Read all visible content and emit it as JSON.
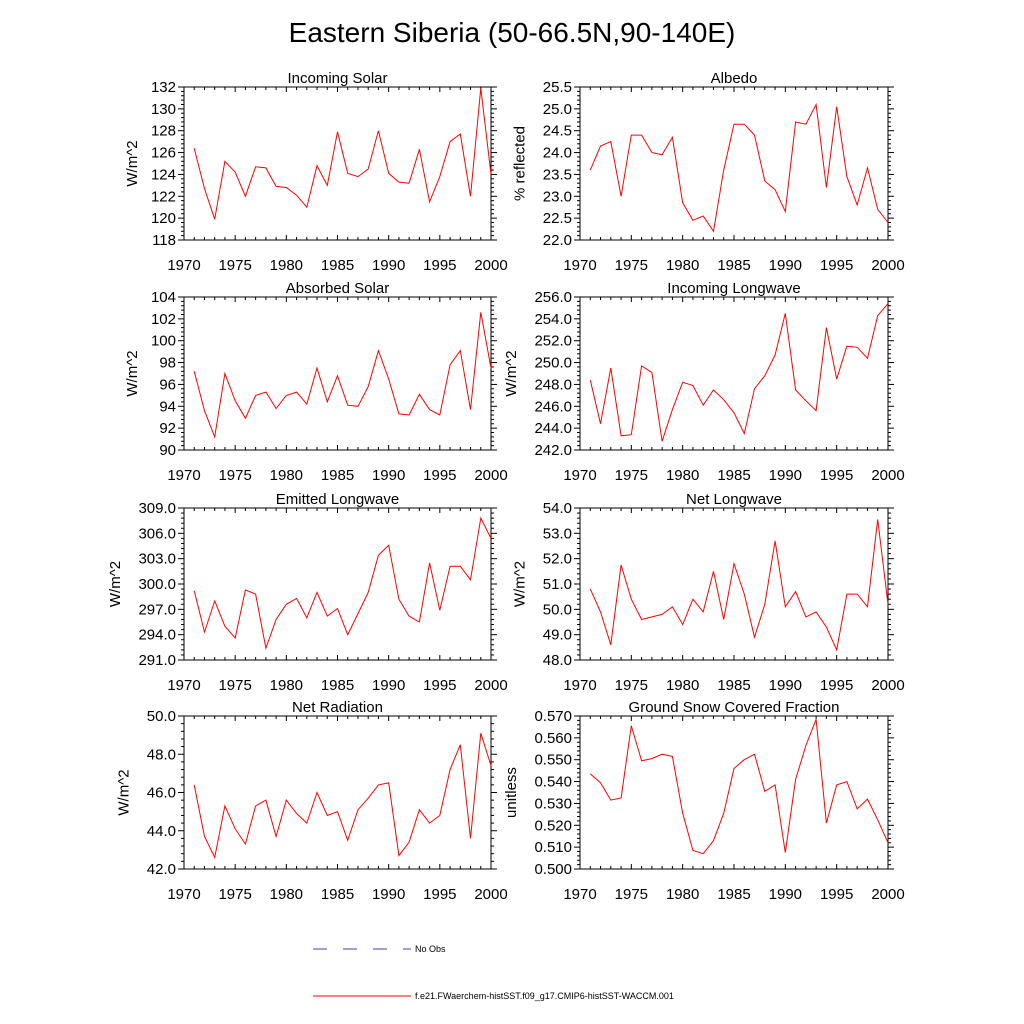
{
  "figure": {
    "title": "Eastern Siberia (50-66.5N,90-140E)"
  },
  "legend": {
    "entries": [
      {
        "label": "No Obs",
        "color": "#3b46a8",
        "style": "dashed"
      },
      {
        "label": "f.e21.FWaerchem-histSST.f09_g17.CMIP6-histSST-WACCM.001",
        "color": "#ff0000",
        "style": "solid"
      }
    ]
  },
  "chart_data": [
    {
      "type": "line",
      "title": "Incoming Solar",
      "ylabel": "W/m^2",
      "xlim": [
        1970,
        2000
      ],
      "ylim": [
        118,
        132
      ],
      "xticks": [
        1970,
        1975,
        1980,
        1985,
        1990,
        1995,
        2000
      ],
      "yticks": [
        "118",
        "120",
        "122",
        "124",
        "126",
        "128",
        "130",
        "132"
      ],
      "x": [
        1971,
        1972,
        1973,
        1974,
        1975,
        1976,
        1977,
        1978,
        1979,
        1980,
        1981,
        1982,
        1983,
        1984,
        1985,
        1986,
        1987,
        1988,
        1989,
        1990,
        1991,
        1992,
        1993,
        1994,
        1995,
        1996,
        1997,
        1998,
        1999,
        2000
      ],
      "series": [
        {
          "color": "#ff0000",
          "values": [
            126.4,
            122.7,
            119.9,
            125.2,
            124.2,
            122.0,
            124.7,
            124.6,
            122.9,
            122.8,
            122.1,
            121.0,
            124.8,
            123.0,
            127.9,
            124.1,
            123.8,
            124.5,
            128.0,
            124.1,
            123.3,
            123.2,
            126.3,
            121.5,
            123.8,
            127.0,
            127.7,
            122.0,
            131.9,
            124.0
          ]
        }
      ]
    },
    {
      "type": "line",
      "title": "Albedo",
      "ylabel": "% reflected",
      "xlim": [
        1970,
        2000
      ],
      "ylim": [
        22.0,
        25.5
      ],
      "xticks": [
        1970,
        1975,
        1980,
        1985,
        1990,
        1995,
        2000
      ],
      "yticks": [
        "22.0",
        "22.5",
        "23.0",
        "23.5",
        "24.0",
        "24.5",
        "25.0",
        "25.5"
      ],
      "x": [
        1971,
        1972,
        1973,
        1974,
        1975,
        1976,
        1977,
        1978,
        1979,
        1980,
        1981,
        1982,
        1983,
        1984,
        1985,
        1986,
        1987,
        1988,
        1989,
        1990,
        1991,
        1992,
        1993,
        1994,
        1995,
        1996,
        1997,
        1998,
        1999,
        2000
      ],
      "series": [
        {
          "color": "#ff0000",
          "values": [
            23.6,
            24.15,
            24.25,
            23.0,
            24.4,
            24.4,
            24.0,
            23.95,
            24.35,
            22.85,
            22.45,
            22.55,
            22.2,
            23.6,
            24.65,
            24.65,
            24.4,
            23.35,
            23.15,
            22.65,
            24.7,
            24.65,
            25.1,
            23.2,
            25.05,
            23.45,
            22.8,
            23.65,
            22.7,
            22.4
          ]
        }
      ]
    },
    {
      "type": "line",
      "title": "Absorbed Solar",
      "ylabel": "W/m^2",
      "xlim": [
        1970,
        2000
      ],
      "ylim": [
        90,
        104
      ],
      "xticks": [
        1970,
        1975,
        1980,
        1985,
        1990,
        1995,
        2000
      ],
      "yticks": [
        "90",
        "92",
        "94",
        "96",
        "98",
        "100",
        "102",
        "104"
      ],
      "x": [
        1971,
        1972,
        1973,
        1974,
        1975,
        1976,
        1977,
        1978,
        1979,
        1980,
        1981,
        1982,
        1983,
        1984,
        1985,
        1986,
        1987,
        1988,
        1989,
        1990,
        1991,
        1992,
        1993,
        1994,
        1995,
        1996,
        1997,
        1998,
        1999,
        2000
      ],
      "series": [
        {
          "color": "#ff0000",
          "values": [
            97.2,
            93.6,
            91.2,
            97.0,
            94.5,
            92.9,
            95.0,
            95.3,
            93.8,
            95.0,
            95.3,
            94.2,
            97.5,
            94.4,
            96.8,
            94.1,
            94.0,
            95.8,
            99.1,
            96.5,
            93.3,
            93.2,
            95.1,
            93.7,
            93.2,
            97.8,
            99.1,
            93.7,
            102.6,
            97.5
          ]
        }
      ]
    },
    {
      "type": "line",
      "title": "Incoming Longwave",
      "ylabel": "W/m^2",
      "xlim": [
        1970,
        2000
      ],
      "ylim": [
        242.0,
        256.0
      ],
      "xticks": [
        1970,
        1975,
        1980,
        1985,
        1990,
        1995,
        2000
      ],
      "yticks": [
        "242.0",
        "244.0",
        "246.0",
        "248.0",
        "250.0",
        "252.0",
        "254.0",
        "256.0"
      ],
      "x": [
        1971,
        1972,
        1973,
        1974,
        1975,
        1976,
        1977,
        1978,
        1979,
        1980,
        1981,
        1982,
        1983,
        1984,
        1985,
        1986,
        1987,
        1988,
        1989,
        1990,
        1991,
        1992,
        1993,
        1994,
        1995,
        1996,
        1997,
        1998,
        1999,
        2000
      ],
      "series": [
        {
          "color": "#ff0000",
          "values": [
            248.4,
            244.4,
            249.5,
            243.3,
            243.4,
            249.7,
            249.1,
            242.8,
            245.7,
            248.2,
            247.9,
            246.1,
            247.5,
            246.6,
            245.4,
            243.5,
            247.6,
            248.8,
            250.7,
            254.5,
            247.5,
            246.5,
            245.6,
            253.2,
            248.5,
            251.5,
            251.4,
            250.4,
            254.3,
            255.4
          ]
        }
      ]
    },
    {
      "type": "line",
      "title": "Emitted Longwave",
      "ylabel": "W/m^2",
      "xlim": [
        1970,
        2000
      ],
      "ylim": [
        291.0,
        309.0
      ],
      "xticks": [
        1970,
        1975,
        1980,
        1985,
        1990,
        1995,
        2000
      ],
      "yticks": [
        "291.0",
        "294.0",
        "297.0",
        "300.0",
        "303.0",
        "306.0",
        "309.0"
      ],
      "x": [
        1971,
        1972,
        1973,
        1974,
        1975,
        1976,
        1977,
        1978,
        1979,
        1980,
        1981,
        1982,
        1983,
        1984,
        1985,
        1986,
        1987,
        1988,
        1989,
        1990,
        1991,
        1992,
        1993,
        1994,
        1995,
        1996,
        1997,
        1998,
        1999,
        2000
      ],
      "series": [
        {
          "color": "#ff0000",
          "values": [
            299.2,
            294.3,
            298.0,
            295.0,
            293.6,
            299.3,
            298.8,
            292.4,
            295.8,
            297.6,
            298.3,
            296.0,
            299.0,
            296.2,
            297.1,
            294.0,
            296.5,
            299.0,
            303.4,
            304.6,
            298.2,
            296.2,
            295.5,
            302.5,
            296.9,
            302.1,
            302.1,
            300.5,
            307.8,
            305.4
          ]
        }
      ]
    },
    {
      "type": "line",
      "title": "Net Longwave",
      "ylabel": "W/m^2",
      "xlim": [
        1970,
        2000
      ],
      "ylim": [
        48.0,
        54.0
      ],
      "xticks": [
        1970,
        1975,
        1980,
        1985,
        1990,
        1995,
        2000
      ],
      "yticks": [
        "48.0",
        "49.0",
        "50.0",
        "51.0",
        "52.0",
        "53.0",
        "54.0"
      ],
      "x": [
        1971,
        1972,
        1973,
        1974,
        1975,
        1976,
        1977,
        1978,
        1979,
        1980,
        1981,
        1982,
        1983,
        1984,
        1985,
        1986,
        1987,
        1988,
        1989,
        1990,
        1991,
        1992,
        1993,
        1994,
        1995,
        1996,
        1997,
        1998,
        1999,
        2000
      ],
      "series": [
        {
          "color": "#ff0000",
          "values": [
            50.8,
            49.9,
            48.6,
            51.75,
            50.4,
            49.6,
            49.7,
            49.8,
            50.1,
            49.4,
            50.4,
            49.9,
            51.5,
            49.6,
            51.8,
            50.6,
            48.9,
            50.2,
            52.7,
            50.1,
            50.7,
            49.7,
            49.9,
            49.3,
            48.4,
            50.6,
            50.6,
            50.1,
            53.55,
            50.2
          ]
        }
      ]
    },
    {
      "type": "line",
      "title": "Net Radiation",
      "ylabel": "W/m^2",
      "xlim": [
        1970,
        2000
      ],
      "ylim": [
        42.0,
        50.0
      ],
      "xticks": [
        1970,
        1975,
        1980,
        1985,
        1990,
        1995,
        2000
      ],
      "yticks": [
        "42.0",
        "44.0",
        "46.0",
        "48.0",
        "50.0"
      ],
      "x": [
        1971,
        1972,
        1973,
        1974,
        1975,
        1976,
        1977,
        1978,
        1979,
        1980,
        1981,
        1982,
        1983,
        1984,
        1985,
        1986,
        1987,
        1988,
        1989,
        1990,
        1991,
        1992,
        1993,
        1994,
        1995,
        1996,
        1997,
        1998,
        1999,
        2000
      ],
      "series": [
        {
          "color": "#ff0000",
          "values": [
            46.4,
            43.7,
            42.6,
            45.3,
            44.1,
            43.3,
            45.3,
            45.6,
            43.7,
            45.6,
            44.9,
            44.4,
            46.0,
            44.8,
            45.0,
            43.5,
            45.1,
            45.7,
            46.4,
            46.5,
            42.7,
            43.4,
            45.1,
            44.4,
            44.8,
            47.2,
            48.5,
            43.6,
            49.1,
            47.4
          ]
        }
      ]
    },
    {
      "type": "line",
      "title": "Ground Snow Covered Fraction",
      "ylabel": "unitless",
      "xlim": [
        1970,
        2000
      ],
      "ylim": [
        0.5,
        0.57
      ],
      "xticks": [
        1970,
        1975,
        1980,
        1985,
        1990,
        1995,
        2000
      ],
      "yticks": [
        "0.500",
        "0.510",
        "0.520",
        "0.530",
        "0.540",
        "0.550",
        "0.560",
        "0.570"
      ],
      "x": [
        1971,
        1972,
        1973,
        1974,
        1975,
        1976,
        1977,
        1978,
        1979,
        1980,
        1981,
        1982,
        1983,
        1984,
        1985,
        1986,
        1987,
        1988,
        1989,
        1990,
        1991,
        1992,
        1993,
        1994,
        1995,
        1996,
        1997,
        1998,
        1999,
        2000
      ],
      "series": [
        {
          "color": "#ff0000",
          "values": [
            0.5435,
            0.5395,
            0.5315,
            0.5325,
            0.5655,
            0.5495,
            0.5505,
            0.5525,
            0.5515,
            0.5255,
            0.5085,
            0.507,
            0.513,
            0.5255,
            0.546,
            0.55,
            0.5525,
            0.5355,
            0.5385,
            0.5075,
            0.541,
            0.5565,
            0.5685,
            0.521,
            0.5385,
            0.54,
            0.5275,
            0.532,
            0.5225,
            0.512
          ]
        }
      ]
    }
  ]
}
